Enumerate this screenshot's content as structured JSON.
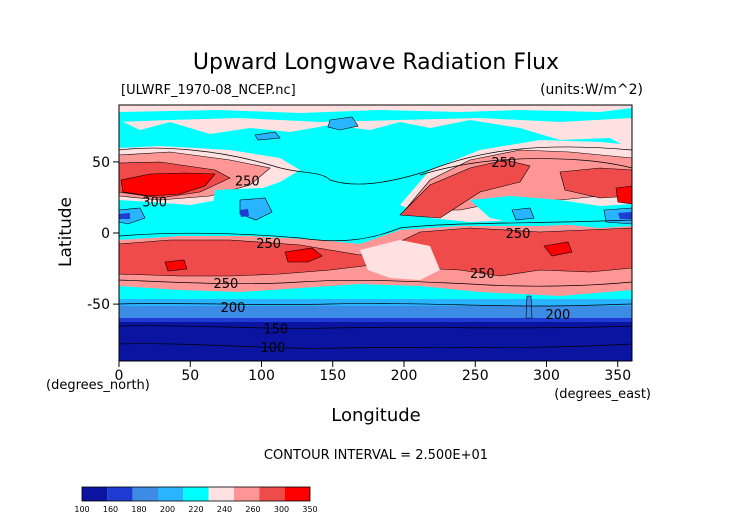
{
  "chart_data": {
    "type": "heatmap",
    "title": "Upward Longwave Radiation Flux",
    "source_label": "[ULWRF_1970-08_NCEP.nc]",
    "units_label": "(units:W/m^2)",
    "xlabel": "Longitude",
    "ylabel": "Latitude",
    "x_unit_label": "(degrees_east)",
    "y_unit_label": "(degrees_north)",
    "xlim": [
      0,
      360
    ],
    "ylim": [
      -90,
      90
    ],
    "x_ticks": [
      0,
      50,
      100,
      150,
      200,
      250,
      300,
      350
    ],
    "y_ticks": [
      -50,
      0,
      50
    ],
    "contour_interval_label": "CONTOUR INTERVAL = 2.500E+01",
    "contour_labels": [
      {
        "text": "250",
        "lon": 270,
        "lat": 50
      },
      {
        "text": "250",
        "lon": 90,
        "lat": 37
      },
      {
        "text": "300",
        "lon": 25,
        "lat": 22
      },
      {
        "text": "250",
        "lon": 105,
        "lat": -7
      },
      {
        "text": "250",
        "lon": 280,
        "lat": 0
      },
      {
        "text": "250",
        "lon": 255,
        "lat": -28
      },
      {
        "text": "250",
        "lon": 75,
        "lat": -35
      },
      {
        "text": "200",
        "lon": 80,
        "lat": -52
      },
      {
        "text": "200",
        "lon": 308,
        "lat": -57
      },
      {
        "text": "150",
        "lon": 110,
        "lat": -67
      },
      {
        "text": "100",
        "lon": 108,
        "lat": -80
      }
    ],
    "colorbar": {
      "levels": [
        "100",
        "160",
        "180",
        "200",
        "220",
        "240",
        "260",
        "300",
        "350"
      ],
      "colors": [
        "#0a14a0",
        "#1e3cd2",
        "#3c8ce6",
        "#28b4ff",
        "#00ffff",
        "#ffe1e1",
        "#ff9696",
        "#f04b4b",
        "#ff0000"
      ]
    }
  }
}
